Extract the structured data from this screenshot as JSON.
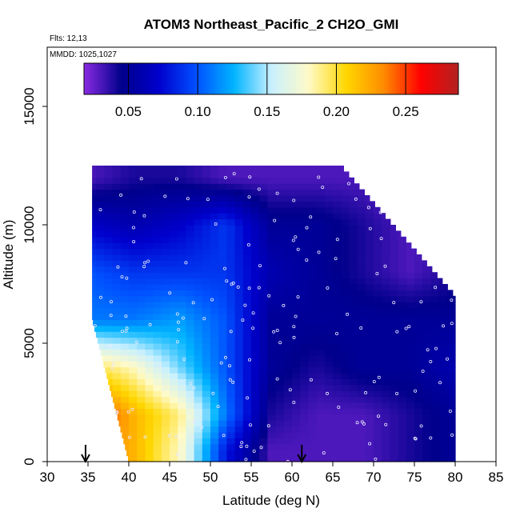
{
  "chart_data": {
    "type": "heatmap",
    "title": "ATOM3 Northeast_Pacific_2 CH2O_GMI",
    "flights_label": "Flts: 12,13",
    "dates_label": "MMDD: 1025,1027",
    "xlabel": "Latitude (deg N)",
    "ylabel": "Altitude (m)",
    "xlim": [
      30,
      85
    ],
    "ylim": [
      0,
      17500
    ],
    "xticks": [
      "30",
      "35",
      "40",
      "45",
      "50",
      "55",
      "60",
      "65",
      "70",
      "75",
      "80",
      "85"
    ],
    "yticks": [
      "0",
      "5000",
      "10000",
      "15000"
    ],
    "colorbar": {
      "range": [
        0.018,
        0.288
      ],
      "ticks": [
        "0.05",
        "0.10",
        "0.15",
        "0.20",
        "0.25"
      ],
      "tick_values": [
        0.05,
        0.1,
        0.15,
        0.2,
        0.25
      ],
      "colors": [
        "#8a2be2",
        "#00008b",
        "#0000cd",
        "#0050ff",
        "#00b4ff",
        "#c8f0ff",
        "#fffac8",
        "#ffd700",
        "#ff8c00",
        "#ff0000",
        "#b22222"
      ]
    },
    "markers": [
      {
        "latitude": 34.7
      },
      {
        "latitude": 61.2
      }
    ],
    "field_summary": {
      "latitude_range": [
        35,
        80
      ],
      "altitude_range_m": [
        0,
        12500
      ],
      "layers": [
        {
          "altitude_m": 500,
          "ch2o": [
            0.24,
            0.22,
            0.18,
            0.08,
            0.03,
            0.03,
            0.03,
            0.04,
            0.05
          ]
        },
        {
          "altitude_m": 2000,
          "ch2o": [
            0.26,
            0.22,
            0.19,
            0.11,
            0.04,
            0.03,
            0.03,
            0.04,
            0.05
          ]
        },
        {
          "altitude_m": 4000,
          "ch2o": [
            0.2,
            0.18,
            0.14,
            0.1,
            0.05,
            0.04,
            0.05,
            0.05,
            0.06
          ]
        },
        {
          "altitude_m": 6000,
          "ch2o": [
            0.11,
            0.11,
            0.12,
            0.1,
            0.05,
            0.05,
            0.05,
            0.05,
            0.05
          ]
        },
        {
          "altitude_m": 8000,
          "ch2o": [
            0.1,
            0.09,
            0.09,
            0.09,
            0.06,
            0.05,
            0.04,
            0.03,
            0.04
          ]
        },
        {
          "altitude_m": 10000,
          "ch2o": [
            0.07,
            0.06,
            0.07,
            0.09,
            0.05,
            0.05,
            0.04,
            0.03,
            0.03
          ]
        },
        {
          "altitude_m": 12000,
          "ch2o": [
            0.03,
            0.04,
            0.04,
            0.03,
            0.03,
            0.03,
            0.03,
            0.02,
            0.02
          ]
        }
      ]
    }
  }
}
